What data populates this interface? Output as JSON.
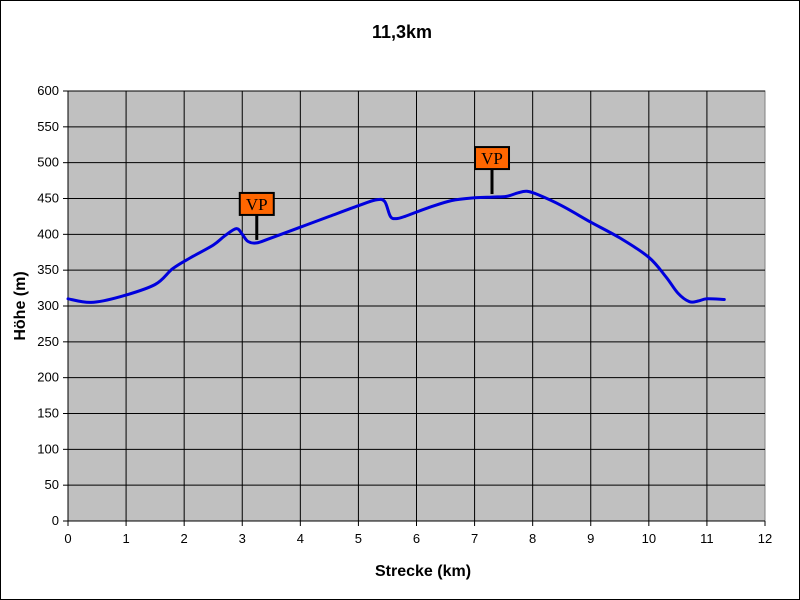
{
  "chart_data": {
    "type": "line",
    "title": "11,3km",
    "xlabel": "Strecke (km)",
    "ylabel": "Höhe (m)",
    "xlim": [
      0,
      12
    ],
    "ylim": [
      0,
      600
    ],
    "x_ticks": [
      "0",
      "1",
      "2",
      "3",
      "4",
      "5",
      "6",
      "7",
      "8",
      "9",
      "10",
      "11",
      "12"
    ],
    "y_ticks": [
      "0",
      "50",
      "100",
      "150",
      "200",
      "250",
      "300",
      "350",
      "400",
      "450",
      "500",
      "550",
      "600"
    ],
    "grid": true,
    "plot_background": "#c0c0c0",
    "line_color": "#0000dd",
    "series": [
      {
        "x": [
          0,
          0.4,
          0.9,
          1.5,
          1.8,
          2.1,
          2.5,
          2.7,
          2.9,
          3.0,
          3.1,
          3.25,
          3.5,
          4.0,
          4.5,
          5.0,
          5.3,
          5.45,
          5.55,
          5.65,
          5.8,
          6.2,
          6.6,
          7.0,
          7.3,
          7.55,
          7.75,
          7.9,
          8.1,
          8.5,
          9.0,
          9.5,
          10.0,
          10.3,
          10.5,
          10.7,
          10.85,
          11.0,
          11.3
        ],
        "y": [
          310,
          305,
          313,
          330,
          352,
          367,
          385,
          398,
          408,
          400,
          390,
          388,
          395,
          410,
          425,
          440,
          448,
          446,
          425,
          422,
          425,
          437,
          447,
          451,
          452,
          453,
          458,
          460,
          455,
          440,
          417,
          395,
          368,
          340,
          318,
          306,
          307,
          310,
          309
        ]
      }
    ],
    "annotations": [
      {
        "text": "VP",
        "x": 3.25,
        "y": 388,
        "fill": "#ff6600"
      },
      {
        "text": "VP",
        "x": 7.3,
        "y": 452,
        "fill": "#ff6600"
      }
    ]
  }
}
